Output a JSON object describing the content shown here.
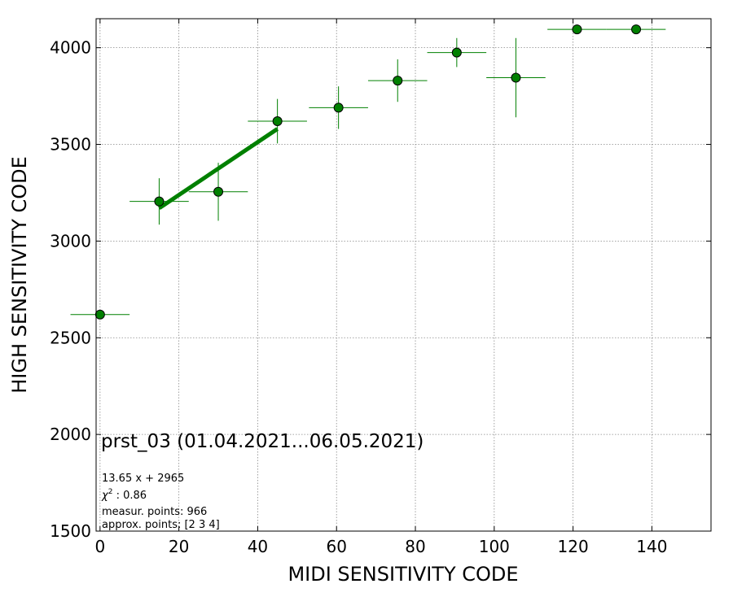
{
  "chart_data": {
    "type": "scatter",
    "xlabel": "MIDI SENSITIVITY CODE",
    "ylabel": "HIGH SENSITIVITY CODE",
    "xlim": [
      -1,
      155
    ],
    "ylim": [
      1500,
      4150
    ],
    "xticks": [
      0,
      20,
      40,
      60,
      80,
      100,
      120,
      140
    ],
    "yticks": [
      1500,
      2000,
      2500,
      3000,
      3500,
      4000
    ],
    "grid": true,
    "marker_color": "#008000",
    "fit_color": "#008000",
    "points": [
      {
        "x": 0,
        "y": 2620,
        "xerr": 7.5,
        "yerr": 0
      },
      {
        "x": 15,
        "y": 3205,
        "xerr": 7.5,
        "yerr": 120
      },
      {
        "x": 30,
        "y": 3255,
        "xerr": 7.5,
        "yerr": 150
      },
      {
        "x": 45,
        "y": 3620,
        "xerr": 7.5,
        "yerr": 115
      },
      {
        "x": 60.5,
        "y": 3690,
        "xerr": 7.5,
        "yerr": 110
      },
      {
        "x": 75.5,
        "y": 3830,
        "xerr": 7.5,
        "yerr": 110
      },
      {
        "x": 90.5,
        "y": 3975,
        "xerr": 7.5,
        "yerr": 75
      },
      {
        "x": 105.5,
        "y": 3845,
        "xerr": 7.5,
        "yerr": 205
      },
      {
        "x": 121,
        "y": 4095,
        "xerr": 7.5,
        "yerr": 0
      },
      {
        "x": 136,
        "y": 4095,
        "xerr": 7.5,
        "yerr": 0
      }
    ],
    "fit_line": {
      "x": [
        15,
        45
      ],
      "y": [
        3170,
        3580
      ]
    },
    "annotations": {
      "title": "prst_03 (01.04.2021...06.05.2021)",
      "equation": "13.65 x + 2965",
      "chi_label": "χ",
      "chi_exp": "2",
      "chi_value": " : 0.86",
      "measur_points": "measur. points: 966",
      "approx_points": "approx. points: [2 3 4]"
    }
  }
}
